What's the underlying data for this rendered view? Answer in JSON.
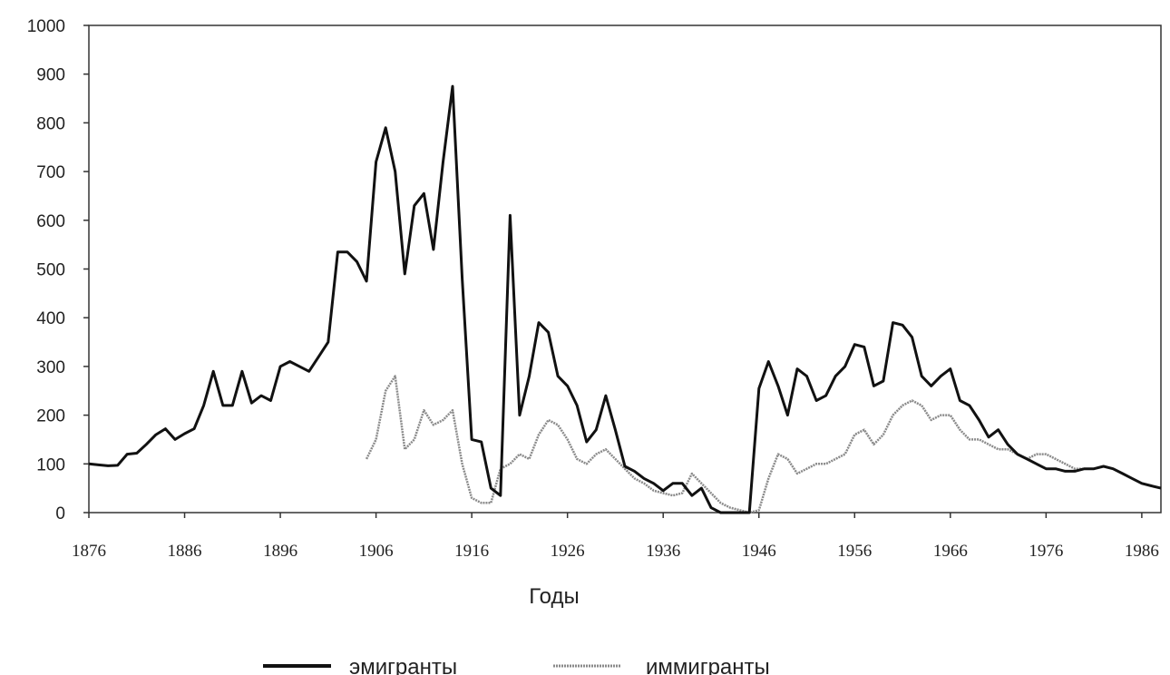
{
  "chart_data": {
    "type": "line",
    "title": "",
    "xlabel": "Годы",
    "ylabel": "",
    "xlim": [
      1876,
      1988
    ],
    "ylim": [
      0,
      1000
    ],
    "y_ticks": [
      0,
      100,
      200,
      300,
      400,
      500,
      600,
      700,
      800,
      900,
      1000
    ],
    "x_ticks": [
      1876,
      1886,
      1896,
      1906,
      1916,
      1926,
      1936,
      1946,
      1956,
      1966,
      1976,
      1986
    ],
    "grid": false,
    "legend_position": "bottom",
    "colors": {
      "emigrants": "#111111",
      "immigrants": "#8a8a8a"
    },
    "series": [
      {
        "name": "эмигранты",
        "x": [
          1876,
          1877,
          1878,
          1879,
          1880,
          1881,
          1882,
          1883,
          1884,
          1885,
          1886,
          1887,
          1888,
          1889,
          1890,
          1891,
          1892,
          1893,
          1894,
          1895,
          1896,
          1897,
          1898,
          1899,
          1900,
          1901,
          1902,
          1903,
          1904,
          1905,
          1906,
          1907,
          1908,
          1909,
          1910,
          1911,
          1912,
          1913,
          1914,
          1915,
          1916,
          1917,
          1918,
          1919,
          1920,
          1921,
          1922,
          1923,
          1924,
          1925,
          1926,
          1927,
          1928,
          1929,
          1930,
          1931,
          1932,
          1933,
          1934,
          1935,
          1936,
          1937,
          1938,
          1939,
          1940,
          1941,
          1942,
          1943,
          1944,
          1945,
          1946,
          1947,
          1948,
          1949,
          1950,
          1951,
          1952,
          1953,
          1954,
          1955,
          1956,
          1957,
          1958,
          1959,
          1960,
          1961,
          1962,
          1963,
          1964,
          1965,
          1966,
          1967,
          1968,
          1969,
          1970,
          1971,
          1972,
          1973,
          1974,
          1975,
          1976,
          1977,
          1978,
          1979,
          1980,
          1981,
          1982,
          1983,
          1984,
          1985,
          1986,
          1987,
          1988
        ],
        "values": [
          100,
          98,
          96,
          97,
          120,
          122,
          140,
          160,
          172,
          150,
          162,
          172,
          220,
          290,
          220,
          220,
          290,
          225,
          240,
          230,
          300,
          310,
          300,
          290,
          320,
          350,
          535,
          535,
          515,
          475,
          720,
          790,
          700,
          490,
          630,
          655,
          540,
          720,
          875,
          480,
          150,
          145,
          50,
          35,
          610,
          200,
          280,
          390,
          370,
          280,
          260,
          220,
          145,
          170,
          240,
          170,
          95,
          85,
          70,
          60,
          45,
          60,
          60,
          35,
          50,
          10,
          0,
          0,
          0,
          0,
          255,
          310,
          260,
          200,
          295,
          280,
          230,
          240,
          280,
          300,
          345,
          340,
          260,
          270,
          390,
          385,
          360,
          280,
          260,
          280,
          295,
          230,
          220,
          190,
          155,
          170,
          140,
          120,
          110,
          100,
          90,
          90,
          85,
          85,
          90,
          90,
          95,
          90,
          80,
          70,
          60,
          55,
          50
        ]
      },
      {
        "name": "иммигранты",
        "x": [
          1905,
          1906,
          1907,
          1908,
          1909,
          1910,
          1911,
          1912,
          1913,
          1914,
          1915,
          1916,
          1917,
          1918,
          1919,
          1920,
          1921,
          1922,
          1923,
          1924,
          1925,
          1926,
          1927,
          1928,
          1929,
          1930,
          1931,
          1932,
          1933,
          1934,
          1935,
          1936,
          1937,
          1938,
          1939,
          1940,
          1941,
          1942,
          1943,
          1944,
          1945,
          1946,
          1947,
          1948,
          1949,
          1950,
          1951,
          1952,
          1953,
          1954,
          1955,
          1956,
          1957,
          1958,
          1959,
          1960,
          1961,
          1962,
          1963,
          1964,
          1965,
          1966,
          1967,
          1968,
          1969,
          1970,
          1971,
          1972,
          1973,
          1974,
          1975,
          1976,
          1977,
          1978,
          1979,
          1980
        ],
        "values": [
          110,
          150,
          250,
          280,
          130,
          150,
          210,
          180,
          190,
          210,
          100,
          30,
          20,
          20,
          90,
          100,
          120,
          110,
          160,
          190,
          180,
          150,
          110,
          100,
          120,
          130,
          110,
          90,
          70,
          60,
          45,
          40,
          35,
          40,
          80,
          60,
          40,
          20,
          10,
          5,
          0,
          5,
          70,
          120,
          110,
          80,
          90,
          100,
          100,
          110,
          120,
          160,
          170,
          140,
          160,
          200,
          220,
          230,
          220,
          190,
          200,
          200,
          170,
          150,
          150,
          140,
          130,
          130,
          120,
          110,
          120,
          120,
          110,
          100,
          90,
          90
        ]
      }
    ]
  }
}
